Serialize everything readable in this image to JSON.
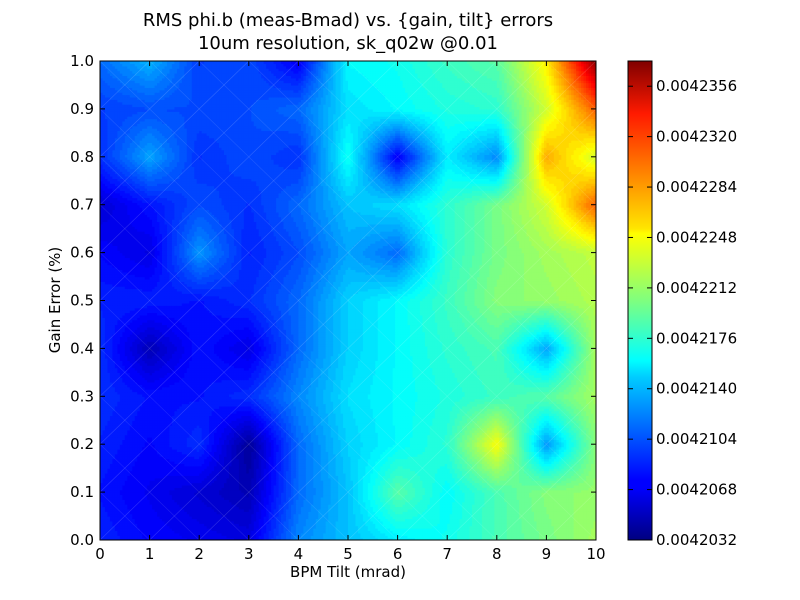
{
  "chart_data": {
    "type": "heatmap",
    "title": "RMS phi.b (meas-Bmad) vs. {gain, tilt} errors",
    "subtitle": "10um resolution, sk_q02w @0.01",
    "xlabel": "BPM Tilt (mrad)",
    "ylabel": "Gain Error (%)",
    "xlim": [
      0,
      10
    ],
    "ylim": [
      0,
      1
    ],
    "x_ticks": [
      "0",
      "1",
      "2",
      "3",
      "4",
      "5",
      "6",
      "7",
      "8",
      "9",
      "10"
    ],
    "y_ticks": [
      "0.0",
      "0.1",
      "0.2",
      "0.3",
      "0.4",
      "0.5",
      "0.6",
      "0.7",
      "0.8",
      "0.9",
      "1.0"
    ],
    "x": [
      0,
      1,
      2,
      3,
      4,
      5,
      6,
      7,
      8,
      9,
      10
    ],
    "y": [
      0,
      0.1,
      0.2,
      0.3,
      0.4,
      0.5,
      0.6,
      0.7,
      0.8,
      0.9,
      1.0
    ],
    "z_rows_by_y": [
      [
        0.0042085,
        0.0042075,
        0.004207,
        0.0042065,
        0.004212,
        0.004214,
        0.0042155,
        0.0042165,
        0.0042185,
        0.00422,
        0.0042215
      ],
      [
        0.004208,
        0.004207,
        0.004206,
        0.004205,
        0.004211,
        0.004214,
        0.004219,
        0.004216,
        0.0042185,
        0.0042205,
        0.004221
      ],
      [
        0.0042085,
        0.0042075,
        0.004209,
        0.004204,
        0.004211,
        0.0042145,
        0.004216,
        0.0042175,
        0.0042245,
        0.0042125,
        0.0042205
      ],
      [
        0.004209,
        0.004208,
        0.004208,
        0.004209,
        0.004212,
        0.004215,
        0.004216,
        0.004217,
        0.004218,
        0.004219,
        0.0042215
      ],
      [
        0.004209,
        0.004205,
        0.004208,
        0.0042065,
        0.004211,
        0.0042145,
        0.004216,
        0.0042175,
        0.0042185,
        0.004213,
        0.0042215
      ],
      [
        0.0042085,
        0.0042085,
        0.004208,
        0.004209,
        0.004211,
        0.0042145,
        0.004216,
        0.004218,
        0.0042205,
        0.004221,
        0.004222
      ],
      [
        0.0042075,
        0.0042065,
        0.0042125,
        0.0042085,
        0.00421,
        0.004213,
        0.004211,
        0.0042175,
        0.00422,
        0.0042215,
        0.0042225
      ],
      [
        0.004206,
        0.004208,
        0.00421,
        0.004209,
        0.004211,
        0.004214,
        0.004215,
        0.0042175,
        0.00422,
        0.004223,
        0.00423
      ],
      [
        0.004209,
        0.004213,
        0.004209,
        0.00421,
        0.004209,
        0.0042165,
        0.004207,
        0.0042155,
        0.004212,
        0.0042275,
        0.004223
      ],
      [
        0.0042095,
        0.00421,
        0.00421,
        0.00421,
        0.004211,
        0.004215,
        0.004216,
        0.004217,
        0.0042175,
        0.004223,
        0.00423
      ],
      [
        0.004211,
        0.0042135,
        0.0042095,
        0.00421,
        0.004207,
        0.004216,
        0.0042165,
        0.004218,
        0.004219,
        0.004225,
        0.004237
      ]
    ],
    "colorbar": {
      "min": 0.0042032,
      "max": 0.0042374,
      "ticks": [
        "0.0042032",
        "0.0042068",
        "0.0042104",
        "0.0042140",
        "0.0042176",
        "0.0042212",
        "0.0042248",
        "0.0042284",
        "0.0042320",
        "0.0042356"
      ],
      "colormap": "jet"
    },
    "grid": false,
    "legend": "none"
  }
}
